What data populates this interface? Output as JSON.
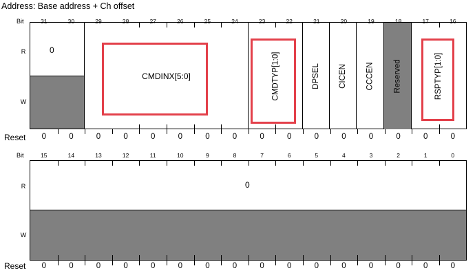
{
  "address": "Address: Base address + Ch offset",
  "labels": {
    "bit": "Bit",
    "read": "R",
    "write": "W",
    "reset": "Reset"
  },
  "upper": {
    "bits": [
      "31",
      "30",
      "29",
      "28",
      "27",
      "26",
      "25",
      "24",
      "23",
      "22",
      "21",
      "20",
      "19",
      "18",
      "17",
      "16"
    ],
    "resets": [
      "0",
      "0",
      "0",
      "0",
      "0",
      "0",
      "0",
      "0",
      "0",
      "0",
      "0",
      "0",
      "0",
      "0",
      "0",
      "0"
    ],
    "read_only_value": "0",
    "fields": {
      "cmdinx": "CMDINX[5:0]",
      "cmdtyp": "CMDTYP[1:0]",
      "dpsel": "DPSEL",
      "cicen": "CICEN",
      "cccen": "CCCEN",
      "reserved": "Reserved",
      "rsptyp": "RSPTYP[1:0]"
    }
  },
  "lower": {
    "bits": [
      "15",
      "14",
      "13",
      "12",
      "11",
      "10",
      "9",
      "8",
      "7",
      "6",
      "5",
      "4",
      "3",
      "2",
      "1",
      "0"
    ],
    "resets": [
      "0",
      "0",
      "0",
      "0",
      "0",
      "0",
      "0",
      "0",
      "0",
      "0",
      "0",
      "0",
      "0",
      "0",
      "0",
      "0"
    ],
    "read_value": "0"
  },
  "colors": {
    "highlight": "#e3404a",
    "reserved_fill": "#808080"
  }
}
